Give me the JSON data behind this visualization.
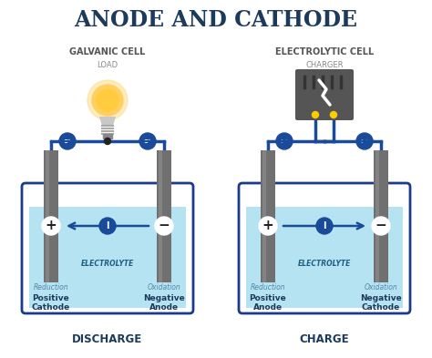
{
  "title": "ANODE AND CATHODE",
  "title_color": "#1b3a5c",
  "bg_color": "#ffffff",
  "left_title": "GALVANIC CELL",
  "right_title": "ELECTROLYTIC CELL",
  "left_subtitle": "LOAD",
  "right_subtitle": "CHARGER",
  "left_bottom": "DISCHARGE",
  "right_bottom": "CHARGE",
  "electrolyte_color": "#aadff0",
  "electrolyte_border": "#2255aa",
  "electrode_color": "#707070",
  "electrode_highlight": "#909090",
  "wire_color": "#1a4a9a",
  "circle_color": "#1a4a9a",
  "text_color": "#1b3a5c",
  "label_italic_color": "#5588aa",
  "tank_border": "#1a3a8a",
  "galvanic_title_color": "#555555",
  "electrolytic_title_color": "#555555",
  "charger_body": "#555555",
  "charger_stripe": "#444444",
  "bulb_glow": "#ffd060",
  "bulb_outer": "#ffb820",
  "bulb_base_color": "#cccccc",
  "bulb_tip_color": "#333333"
}
